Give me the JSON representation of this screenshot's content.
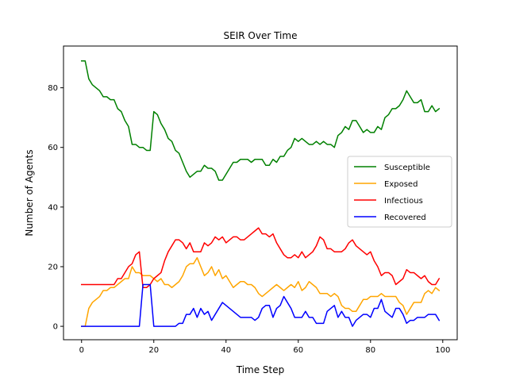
{
  "chart_data": {
    "type": "line",
    "title": "SEIR Over Time",
    "xlabel": "Time Step",
    "ylabel": "Number of Agents",
    "xlim": [
      -5,
      104
    ],
    "ylim": [
      -4.5,
      94
    ],
    "xticks": [
      0,
      20,
      40,
      60,
      80,
      100
    ],
    "yticks": [
      0,
      20,
      40,
      60,
      80
    ],
    "legend_position": "center-right",
    "x": [
      0,
      1,
      2,
      3,
      4,
      5,
      6,
      7,
      8,
      9,
      10,
      11,
      12,
      13,
      14,
      15,
      16,
      17,
      18,
      19,
      20,
      21,
      22,
      23,
      24,
      25,
      26,
      27,
      28,
      29,
      30,
      31,
      32,
      33,
      34,
      35,
      36,
      37,
      38,
      39,
      40,
      41,
      42,
      43,
      44,
      45,
      46,
      47,
      48,
      49,
      50,
      51,
      52,
      53,
      54,
      55,
      56,
      57,
      58,
      59,
      60,
      61,
      62,
      63,
      64,
      65,
      66,
      67,
      68,
      69,
      70,
      71,
      72,
      73,
      74,
      75,
      76,
      77,
      78,
      79,
      80,
      81,
      82,
      83,
      84,
      85,
      86,
      87,
      88,
      89,
      90,
      91,
      92,
      93,
      94,
      95,
      96,
      97,
      98,
      99
    ],
    "series": [
      {
        "name": "Susceptible",
        "color": "#008000",
        "values": [
          89,
          89,
          83,
          81,
          80,
          79,
          77,
          77,
          76,
          76,
          73,
          72,
          69,
          67,
          61,
          61,
          60,
          60,
          59,
          59,
          72,
          71,
          68,
          66,
          63,
          62,
          59,
          58,
          55,
          52,
          50,
          51,
          52,
          52,
          54,
          53,
          53,
          52,
          49,
          49,
          51,
          53,
          55,
          55,
          56,
          56,
          56,
          55,
          56,
          56,
          56,
          54,
          54,
          56,
          55,
          57,
          57,
          59,
          60,
          63,
          62,
          63,
          62,
          61,
          61,
          62,
          61,
          62,
          61,
          61,
          60,
          64,
          65,
          67,
          66,
          69,
          69,
          67,
          65,
          66,
          65,
          65,
          67,
          66,
          70,
          71,
          73,
          73,
          74,
          76,
          79,
          77,
          75,
          75,
          76,
          72,
          72,
          74,
          72,
          73
        ]
      },
      {
        "name": "Exposed",
        "color": "#FFA500",
        "values": [
          0,
          0,
          6,
          8,
          9,
          10,
          12,
          12,
          13,
          13,
          14,
          15,
          16,
          16,
          20,
          18,
          18,
          17,
          17,
          17,
          16,
          15,
          16,
          14,
          14,
          13,
          14,
          15,
          17,
          20,
          21,
          21,
          23,
          20,
          17,
          18,
          20,
          17,
          19,
          16,
          17,
          15,
          13,
          14,
          15,
          15,
          14,
          14,
          13,
          11,
          10,
          11,
          12,
          13,
          14,
          13,
          12,
          13,
          14,
          13,
          15,
          12,
          13,
          15,
          14,
          13,
          11,
          11,
          11,
          10,
          11,
          10,
          7,
          6,
          6,
          5,
          5,
          7,
          9,
          9,
          10,
          10,
          10,
          11,
          10,
          10,
          10,
          10,
          8,
          7,
          4,
          6,
          8,
          8,
          8,
          11,
          12,
          11,
          13,
          12
        ]
      },
      {
        "name": "Infectious",
        "color": "#FF0000",
        "values": [
          14,
          14,
          14,
          14,
          14,
          14,
          14,
          14,
          14,
          14,
          16,
          16,
          18,
          20,
          21,
          24,
          25,
          13,
          13,
          14,
          16,
          17,
          18,
          22,
          25,
          27,
          29,
          29,
          28,
          26,
          28,
          25,
          25,
          25,
          28,
          27,
          28,
          30,
          29,
          30,
          28,
          29,
          30,
          30,
          29,
          29,
          30,
          31,
          32,
          33,
          31,
          31,
          30,
          31,
          28,
          26,
          24,
          23,
          23,
          24,
          23,
          25,
          23,
          24,
          25,
          27,
          30,
          29,
          26,
          26,
          25,
          25,
          25,
          26,
          28,
          29,
          27,
          26,
          25,
          24,
          25,
          22,
          20,
          17,
          18,
          18,
          17,
          14,
          15,
          16,
          19,
          18,
          18,
          17,
          16,
          17,
          15,
          14,
          14,
          16
        ]
      },
      {
        "name": "Recovered",
        "color": "#0000FF",
        "values": [
          0,
          0,
          0,
          0,
          0,
          0,
          0,
          0,
          0,
          0,
          0,
          0,
          0,
          0,
          0,
          0,
          0,
          14,
          14,
          14,
          0,
          0,
          0,
          0,
          0,
          0,
          0,
          1,
          1,
          4,
          4,
          6,
          3,
          6,
          4,
          5,
          2,
          4,
          6,
          8,
          7,
          6,
          5,
          4,
          3,
          3,
          3,
          3,
          2,
          3,
          6,
          7,
          7,
          3,
          6,
          7,
          10,
          8,
          6,
          3,
          3,
          3,
          5,
          3,
          3,
          1,
          1,
          1,
          5,
          6,
          7,
          3,
          5,
          3,
          3,
          0,
          2,
          3,
          4,
          4,
          3,
          6,
          6,
          9,
          5,
          4,
          3,
          6,
          6,
          4,
          1,
          2,
          2,
          3,
          3,
          3,
          4,
          4,
          4,
          2
        ]
      }
    ]
  }
}
